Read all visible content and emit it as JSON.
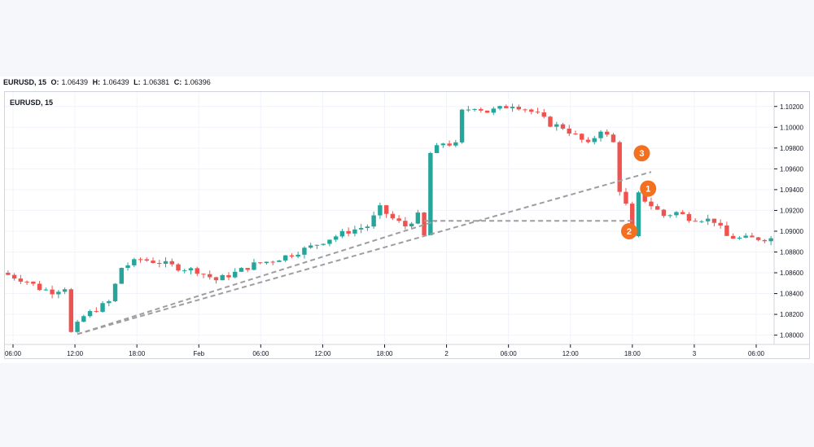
{
  "header": {
    "symbol": "EURUSD, 15",
    "open_label": "O:",
    "open": "1.06439",
    "high_label": "H:",
    "high": "1.06439",
    "low_label": "L:",
    "low": "1.06381",
    "close_label": "C:",
    "close": "1.06396"
  },
  "legend": {
    "symbol": "EURUSD, 15"
  },
  "colors": {
    "up": "#26a69a",
    "down": "#ef5350",
    "marker": "#f37021",
    "trendline": "#9e9e9e"
  },
  "chart_data": {
    "type": "candlestick",
    "symbol": "EURUSD",
    "timeframe": "15",
    "y_range": [
      1.0795,
      1.103
    ],
    "y_ticks": [
      "1.10200",
      "1.10000",
      "1.09800",
      "1.09600",
      "1.09400",
      "1.09200",
      "1.09000",
      "1.08800",
      "1.08600",
      "1.08400",
      "1.08200",
      "1.08000"
    ],
    "x_ticks": [
      "06:00",
      "12:00",
      "18:00",
      "Feb",
      "06:00",
      "12:00",
      "18:00",
      "2",
      "06:00",
      "12:00",
      "18:00",
      "3",
      "06:00"
    ],
    "grid": true,
    "trend_path": [
      [
        0,
        1.086
      ],
      [
        4,
        1.0852
      ],
      [
        6,
        1.0845
      ],
      [
        8,
        1.0842
      ],
      [
        10,
        1.0846
      ],
      [
        11,
        1.0802
      ],
      [
        13,
        1.0818
      ],
      [
        15,
        1.0825
      ],
      [
        17,
        1.0832
      ],
      [
        19,
        1.0865
      ],
      [
        22,
        1.0873
      ],
      [
        25,
        1.087
      ],
      [
        28,
        1.0865
      ],
      [
        31,
        1.0862
      ],
      [
        34,
        1.0853
      ],
      [
        37,
        1.086
      ],
      [
        40,
        1.0868
      ],
      [
        43,
        1.0872
      ],
      [
        46,
        1.0878
      ],
      [
        49,
        1.0885
      ],
      [
        52,
        1.0893
      ],
      [
        55,
        1.09
      ],
      [
        58,
        1.0905
      ],
      [
        60,
        1.0922
      ],
      [
        62,
        1.0912
      ],
      [
        64,
        1.0905
      ],
      [
        66,
        1.0915
      ],
      [
        67,
        1.0895
      ],
      [
        68,
        1.0975
      ],
      [
        70,
        1.0985
      ],
      [
        72,
        1.0983
      ],
      [
        73,
        1.1015
      ],
      [
        75,
        1.102
      ],
      [
        77,
        1.1015
      ],
      [
        79,
        1.1018
      ],
      [
        81,
        1.1022
      ],
      [
        83,
        1.1018
      ],
      [
        85,
        1.1012
      ],
      [
        87,
        1.1003
      ],
      [
        89,
        1.1
      ],
      [
        91,
        1.0992
      ],
      [
        93,
        1.0983
      ],
      [
        95,
        1.0998
      ],
      [
        97,
        1.0985
      ],
      [
        98,
        1.094
      ],
      [
        99,
        1.0925
      ],
      [
        100,
        1.0893
      ],
      [
        101,
        1.0935
      ],
      [
        103,
        1.0925
      ],
      [
        105,
        1.0915
      ],
      [
        107,
        1.0918
      ],
      [
        109,
        1.0913
      ],
      [
        111,
        1.0912
      ],
      [
        113,
        1.091
      ],
      [
        115,
        1.0895
      ],
      [
        117,
        1.0893
      ],
      [
        119,
        1.0893
      ],
      [
        121,
        1.0893
      ]
    ],
    "trend_line_1": [
      [
        11,
        1.0801
      ],
      [
        68,
        1.091
      ]
    ],
    "trend_line_2": [
      [
        11,
        1.0801
      ],
      [
        102,
        1.0957
      ]
    ],
    "horizontal_level": [
      [
        66,
        1.091
      ],
      [
        99,
        1.091
      ]
    ],
    "markers": [
      {
        "label": "1",
        "bar": 101,
        "price": 1.0941
      },
      {
        "label": "2",
        "bar": 98,
        "price": 1.09
      },
      {
        "label": "3",
        "bar": 100,
        "price": 1.0975
      }
    ]
  }
}
